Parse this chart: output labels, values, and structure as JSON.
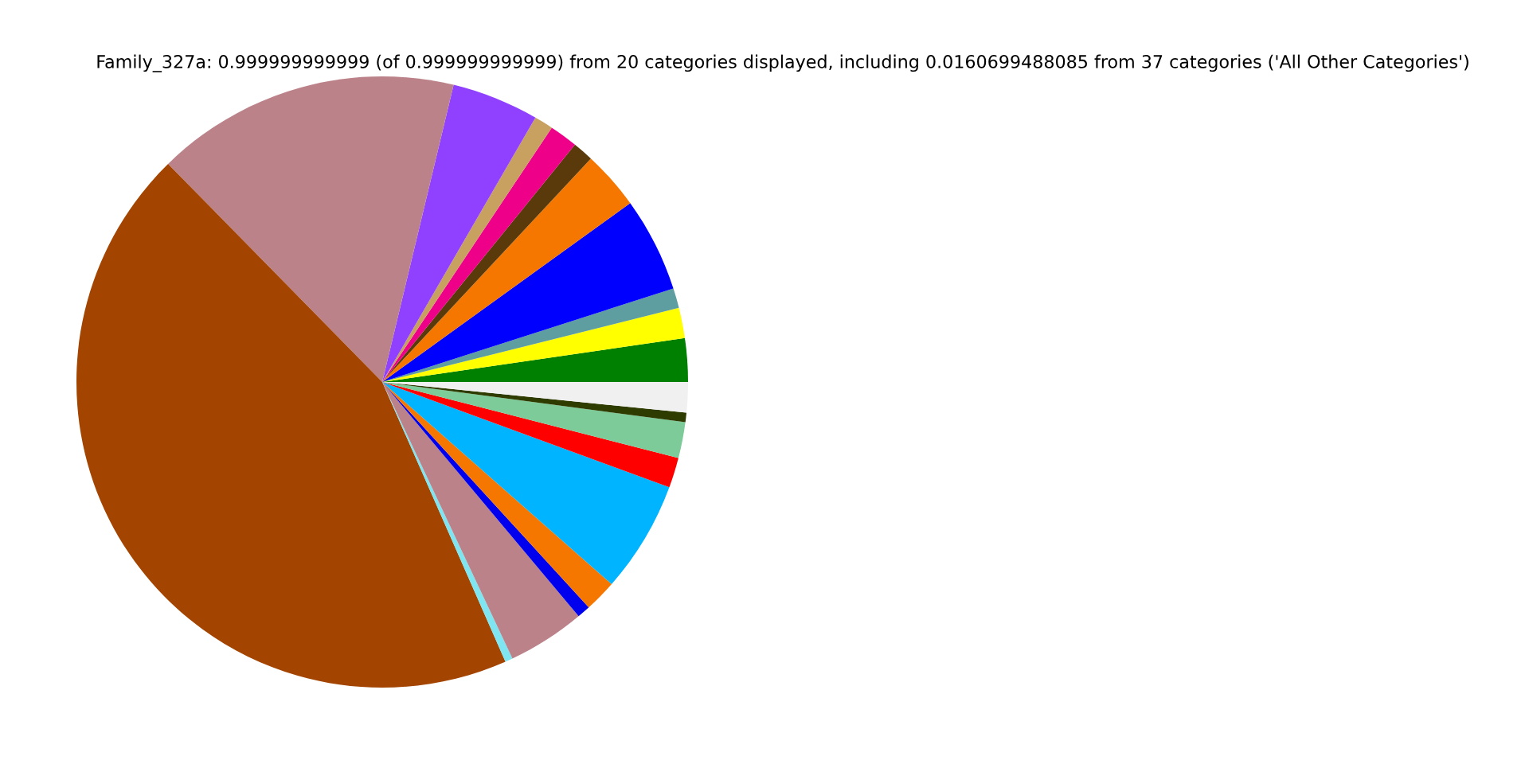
{
  "chart_data": {
    "type": "pie",
    "title": "Family_327a: 0.999999999999 (of 0.999999999999) from 20 categories displayed, including 0.0160699488085 from 37 categories ('All Other Categories')",
    "categories": [
      null,
      null,
      null,
      null,
      null,
      null,
      null,
      null,
      null,
      null,
      null,
      null,
      null,
      null,
      null,
      null,
      null,
      null,
      null,
      null
    ],
    "values": [
      2.3,
      1.6,
      1.05,
      5.0,
      3.1,
      1.1,
      1.5,
      1.0,
      4.6,
      16.1,
      44.25,
      0.4,
      4.1,
      0.7,
      1.7,
      5.9,
      1.6,
      1.9,
      0.5,
      1.6
    ],
    "colors": [
      "#008000",
      "#ffff00",
      "#5f9ea0",
      "#0000ff",
      "#f57700",
      "#5a3a0a",
      "#ee0088",
      "#c8a060",
      "#9040ff",
      "#bc8289",
      "#a34500",
      "#7fe5f0",
      "#bc8289",
      "#0000ee",
      "#f57700",
      "#00b4ff",
      "#ff0000",
      "#7ccb98",
      "#2e3c00",
      "#f0f0f0"
    ]
  }
}
